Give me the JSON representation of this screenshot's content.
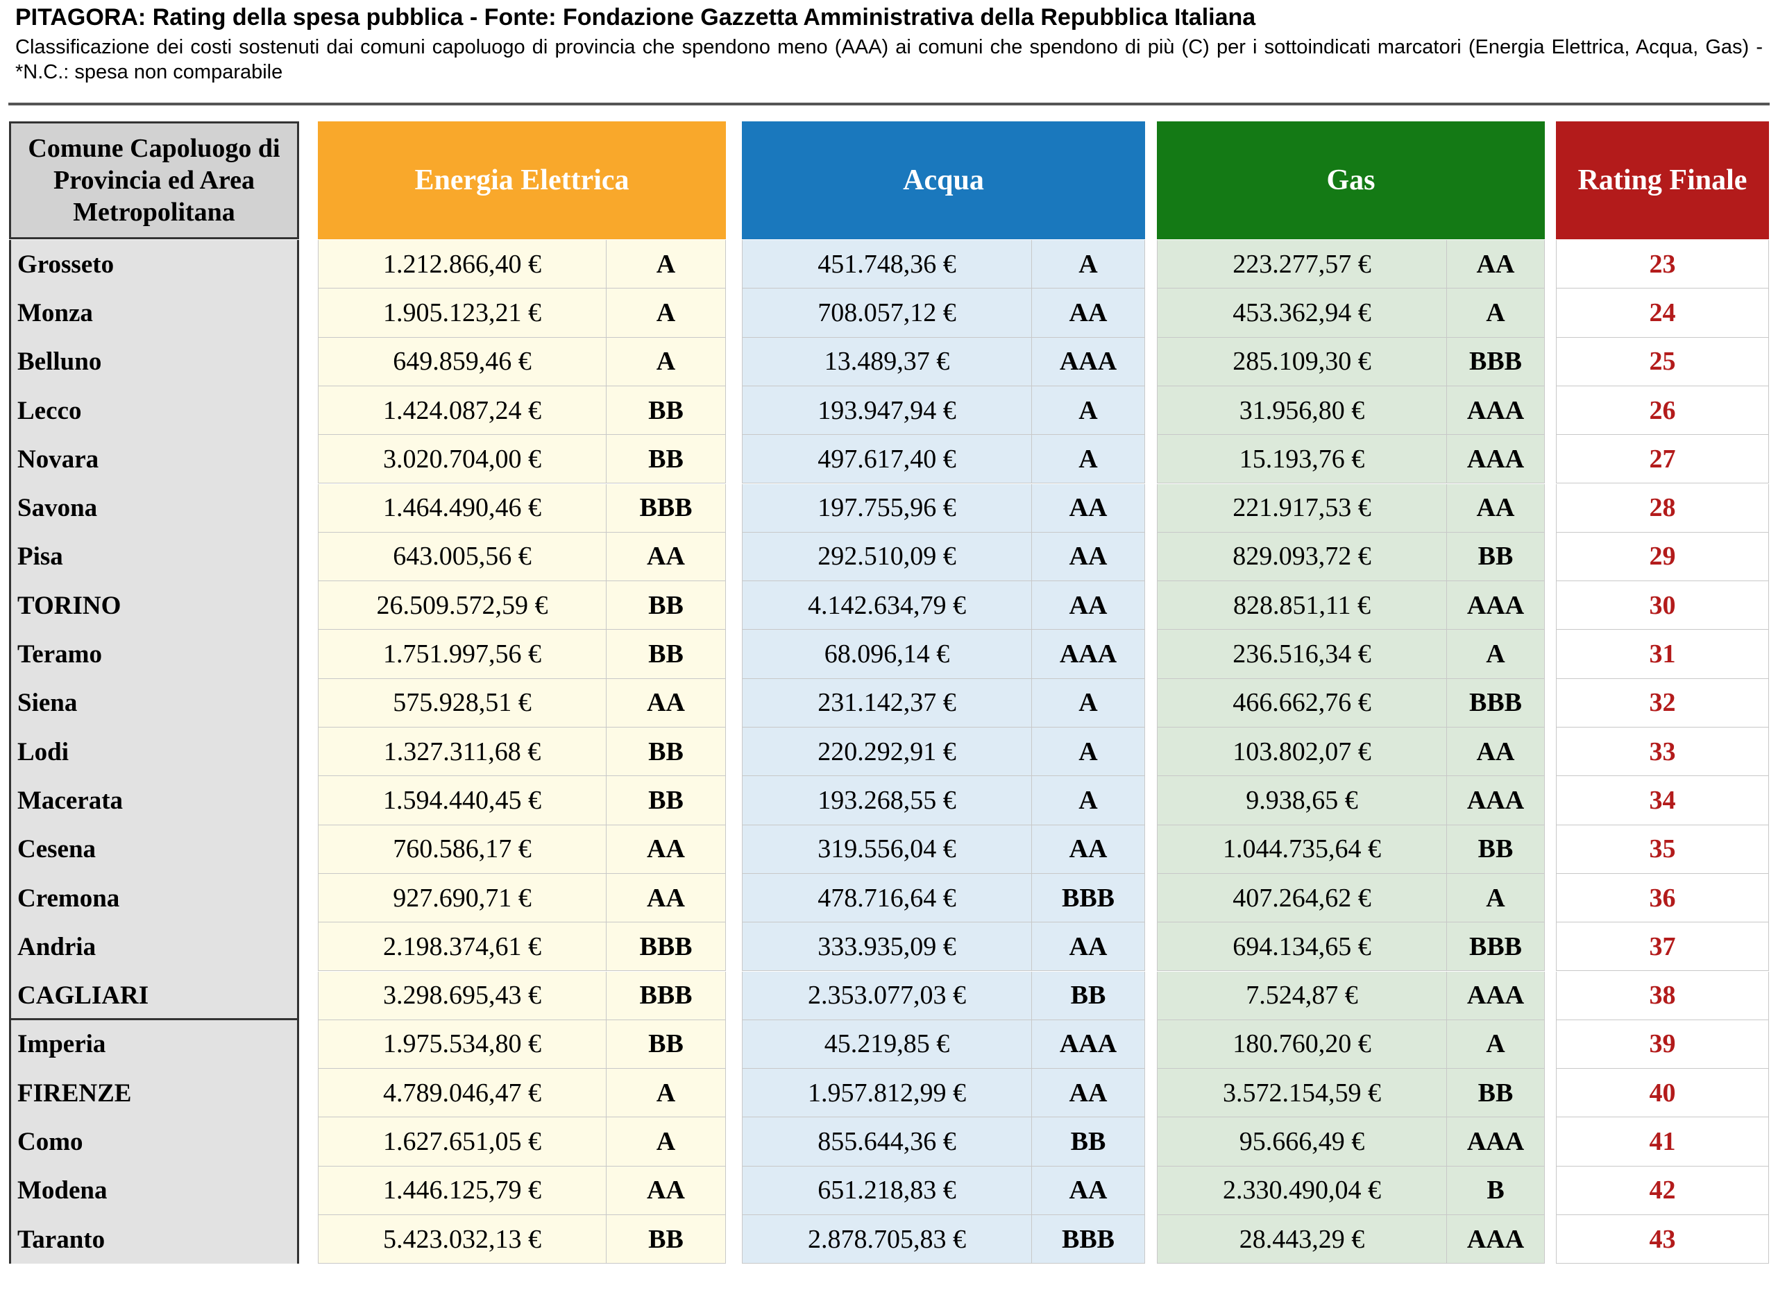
{
  "title": "PITAGORA: Rating della spesa pubblica - Fonte: Fondazione Gazzetta Amministrativa della Repubblica Italiana",
  "subtitle": "Classificazione dei costi sostenuti dai comuni capoluogo di provincia che spendono meno (AAA) ai comuni che spendono di più (C) per i sottoindicati marcatori (Energia Elettrica, Acqua, Gas) - *N.C.: spesa non comparabile",
  "table": {
    "headers": [
      "Comune Capoluogo di Provincia ed Area Metropolitana",
      "Energia Elettrica",
      "Acqua",
      "Gas",
      "Rating Finale"
    ],
    "rows": [
      [
        "Grosseto",
        "1.212.866,40 €",
        "A",
        "451.748,36 €",
        "A",
        "223.277,57 €",
        "AA",
        "23"
      ],
      [
        "Monza",
        "1.905.123,21 €",
        "A",
        "708.057,12 €",
        "AA",
        "453.362,94 €",
        "A",
        "24"
      ],
      [
        "Belluno",
        "649.859,46 €",
        "A",
        "13.489,37 €",
        "AAA",
        "285.109,30 €",
        "BBB",
        "25"
      ],
      [
        "Lecco",
        "1.424.087,24 €",
        "BB",
        "193.947,94 €",
        "A",
        "31.956,80 €",
        "AAA",
        "26"
      ],
      [
        "Novara",
        "3.020.704,00 €",
        "BB",
        "497.617,40 €",
        "A",
        "15.193,76 €",
        "AAA",
        "27"
      ],
      [
        "Savona",
        "1.464.490,46 €",
        "BBB",
        "197.755,96 €",
        "AA",
        "221.917,53 €",
        "AA",
        "28"
      ],
      [
        "Pisa",
        "643.005,56 €",
        "AA",
        "292.510,09 €",
        "AA",
        "829.093,72 €",
        "BB",
        "29"
      ],
      [
        "TORINO",
        "26.509.572,59 €",
        "BB",
        "4.142.634,79 €",
        "AA",
        "828.851,11 €",
        "AAA",
        "30"
      ],
      [
        "Teramo",
        "1.751.997,56 €",
        "BB",
        "68.096,14 €",
        "AAA",
        "236.516,34 €",
        "A",
        "31"
      ],
      [
        "Siena",
        "575.928,51 €",
        "AA",
        "231.142,37 €",
        "A",
        "466.662,76 €",
        "BBB",
        "32"
      ],
      [
        "Lodi",
        "1.327.311,68 €",
        "BB",
        "220.292,91 €",
        "A",
        "103.802,07 €",
        "AA",
        "33"
      ],
      [
        "Macerata",
        "1.594.440,45 €",
        "BB",
        "193.268,55 €",
        "A",
        "9.938,65 €",
        "AAA",
        "34"
      ],
      [
        "Cesena",
        "760.586,17 €",
        "AA",
        "319.556,04 €",
        "AA",
        "1.044.735,64 €",
        "BB",
        "35"
      ],
      [
        "Cremona",
        "927.690,71 €",
        "AA",
        "478.716,64 €",
        "BBB",
        "407.264,62 €",
        "A",
        "36"
      ],
      [
        "Andria",
        "2.198.374,61 €",
        "BBB",
        "333.935,09 €",
        "AA",
        "694.134,65 €",
        "BBB",
        "37"
      ],
      [
        "CAGLIARI",
        "3.298.695,43 €",
        "BBB",
        "2.353.077,03 €",
        "BB",
        "7.524,87 €",
        "AAA",
        "38"
      ],
      [
        "Imperia",
        "1.975.534,80 €",
        "BB",
        "45.219,85 €",
        "AAA",
        "180.760,20 €",
        "A",
        "39"
      ],
      [
        "FIRENZE",
        "4.789.046,47 €",
        "A",
        "1.957.812,99 €",
        "AA",
        "3.572.154,59 €",
        "BB",
        "40"
      ],
      [
        "Como",
        "1.627.651,05 €",
        "A",
        "855.644,36 €",
        "BB",
        "95.666,49 €",
        "AAA",
        "41"
      ],
      [
        "Modena",
        "1.446.125,79 €",
        "AA",
        "651.218,83 €",
        "AA",
        "2.330.490,04 €",
        "B",
        "42"
      ],
      [
        "Taranto",
        "5.423.032,13 €",
        "BB",
        "2.878.705,83 €",
        "BBB",
        "28.443,29 €",
        "AAA",
        "43"
      ]
    ]
  }
}
